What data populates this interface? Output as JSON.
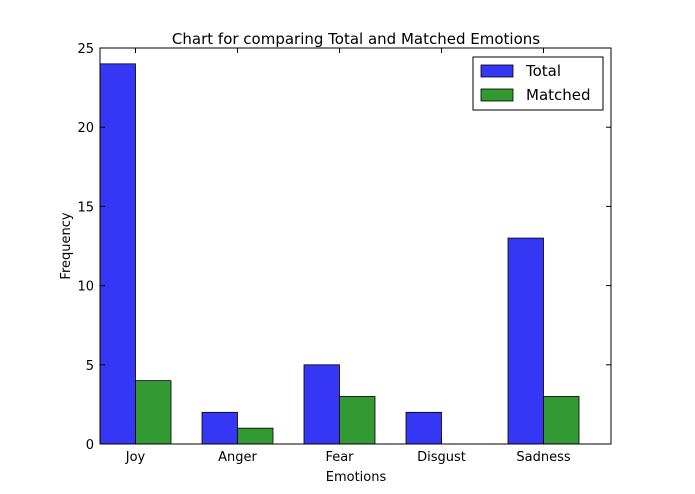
{
  "chart_data": {
    "type": "bar",
    "title": "Chart for comparing Total and Matched Emotions",
    "xlabel": "Emotions",
    "ylabel": "Frequency",
    "categories": [
      "Joy",
      "Anger",
      "Fear",
      "Disgust",
      "Sadness"
    ],
    "ylim": [
      0,
      25
    ],
    "yticks": [
      "0",
      "5",
      "10",
      "15",
      "20",
      "25"
    ],
    "series": [
      {
        "name": "Total",
        "color": "#3636f5",
        "values": [
          24,
          2,
          5,
          2,
          13
        ]
      },
      {
        "name": "Matched",
        "color": "#339933",
        "values": [
          4,
          1,
          3,
          0,
          3
        ]
      }
    ],
    "legend_position": "top-right",
    "grid": false
  }
}
